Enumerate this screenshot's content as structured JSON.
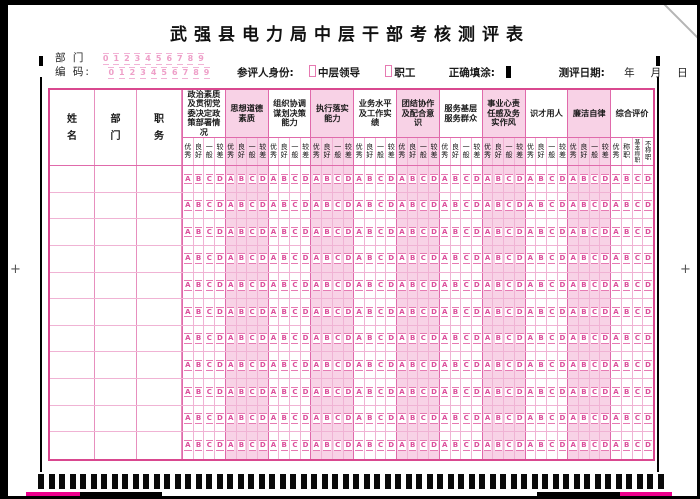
{
  "title": "武强县电力局中层干部考核测评表",
  "header": {
    "dept_label": "部 门",
    "code_label": "编 码:",
    "digit_scale": [
      "0",
      "1",
      "2",
      "3",
      "4",
      "5",
      "6",
      "7",
      "8",
      "9"
    ],
    "identity_label": "参评人身份:",
    "identity_options": [
      "中层领导",
      "职工"
    ],
    "fill_label": "正确填涂:",
    "date_label": "测评日期:",
    "date_units": [
      "年",
      "月",
      "日"
    ]
  },
  "table": {
    "fixed_columns": [
      "姓名",
      "部门",
      "职务"
    ],
    "categories": [
      {
        "label": "政治素质及贯彻党委决定政策部署情况",
        "shaded": false
      },
      {
        "label": "思想道德素质",
        "shaded": true
      },
      {
        "label": "组织协调谋划决策能力",
        "shaded": false
      },
      {
        "label": "执行落实能力",
        "shaded": true
      },
      {
        "label": "业务水平及工作实绩",
        "shaded": false
      },
      {
        "label": "团结协作及配合意识",
        "shaded": true
      },
      {
        "label": "服务基层服务群众",
        "shaded": false
      },
      {
        "label": "事业心责任感及务实作风",
        "shaded": true
      },
      {
        "label": "识才用人",
        "shaded": false
      },
      {
        "label": "廉洁自律",
        "shaded": true
      },
      {
        "label": "综合评价",
        "shaded": false
      }
    ],
    "rating_scale": [
      "优秀",
      "良好",
      "一般",
      "较差"
    ],
    "overall_rating_scale": [
      "优秀",
      "称职",
      "基本称职",
      "不称职"
    ],
    "bubble_letters": [
      "A",
      "B",
      "C",
      "D"
    ],
    "data_row_count": 11
  },
  "marks": {
    "timing_mark_count": 60,
    "plus_mark": "+"
  },
  "colors": {
    "grid_pink": "#e06aab",
    "light_grid_pink": "#f0b3d4",
    "fill_pink": "#f8d2e6",
    "bubble_pink": "#db4f9b",
    "digit_pink": "#ee9fc8",
    "outer_border_pink": "#d9488f",
    "calibration_magenta": "#ec008c",
    "mark_black": "#000000"
  }
}
